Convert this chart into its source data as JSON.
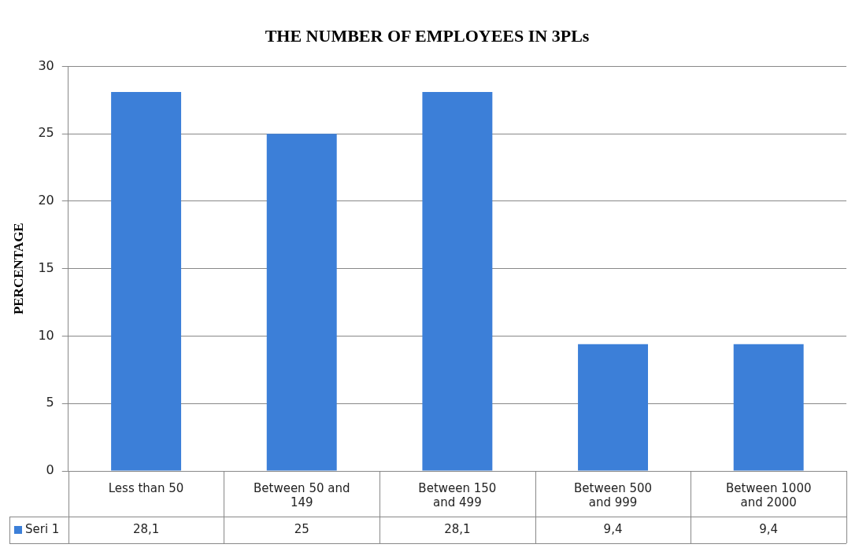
{
  "chart_data": {
    "type": "bar",
    "title": "THE NUMBER OF EMPLOYEES IN 3PLs",
    "ylabel": "PERCENTAGE",
    "categories": [
      "Less than 50",
      "Between 50 and 149",
      "Between 150 and 499",
      "Between 500 and 999",
      "Between 1000 and 2000"
    ],
    "series": [
      {
        "name": "Seri 1",
        "color": "#3c7fd8",
        "values": [
          28.1,
          25,
          28.1,
          9.4,
          9.4
        ],
        "value_labels": [
          "28,1",
          "25",
          "28,1",
          "9,4",
          "9,4"
        ]
      }
    ],
    "ylim": [
      0,
      30
    ],
    "yticks": [
      0,
      5,
      10,
      15,
      20,
      25,
      30
    ],
    "grid": "y",
    "legend": "bottom"
  }
}
